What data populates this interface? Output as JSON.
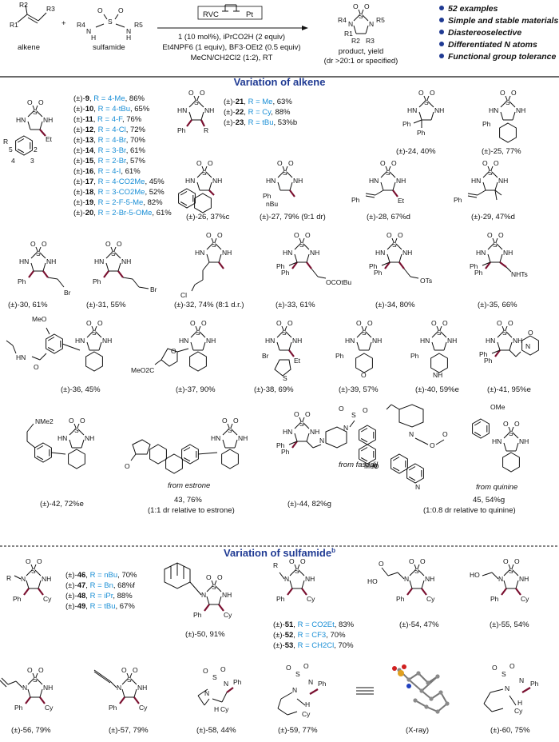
{
  "header": {
    "alkene_label": "alkene",
    "sulfamide_label": "sulfamide",
    "plus": "+",
    "electrodes": {
      "anode": "RVC",
      "cathode": "Pt"
    },
    "conditions": [
      "1 (10 mol%), iPrCO2H (2 equiv)",
      "Et4NPF6 (1 equiv), BF3·OEt2 (0.5 equiv)",
      "MeCN/CH2Cl2 (1:2), RT"
    ],
    "product_label": "product, yield",
    "dr_label": "(dr >20:1 or specified)",
    "highlights": [
      "52 examples",
      "Simple and stable materials",
      "Diastereoselective",
      "Differentiated N atoms",
      "Functional group tolerance"
    ],
    "bullet_color": "#1f3a93"
  },
  "sections": {
    "alkene": "Variation of alkene",
    "sulfamide": "Variation of sulfamide",
    "sulfamide_sup": "b"
  },
  "series_9_20": [
    {
      "no": "9",
      "r": "R = 4-Me",
      "y": "86%"
    },
    {
      "no": "10",
      "r": "R = 4-tBu",
      "y": "65%"
    },
    {
      "no": "11",
      "r": "R = 4-F",
      "y": "76%"
    },
    {
      "no": "12",
      "r": "R = 4-Cl",
      "y": "72%"
    },
    {
      "no": "13",
      "r": "R = 4-Br",
      "y": "70%"
    },
    {
      "no": "14",
      "r": "R = 3-Br",
      "y": "61%"
    },
    {
      "no": "15",
      "r": "R = 2-Br",
      "y": "57%"
    },
    {
      "no": "16",
      "r": "R = 4-I",
      "y": "61%"
    },
    {
      "no": "17",
      "r": "R = 4-CO2Me",
      "y": "45%"
    },
    {
      "no": "18",
      "r": "R = 3-CO2Me",
      "y": "52%"
    },
    {
      "no": "19",
      "r": "R = 2-F-5-Me",
      "y": "82%"
    },
    {
      "no": "20",
      "r": "R = 2-Br-5-OMe",
      "y": "61%"
    }
  ],
  "series_21_23": [
    {
      "no": "21",
      "r": "R = Me",
      "y": "63%"
    },
    {
      "no": "22",
      "r": "R = Cy",
      "y": "88%"
    },
    {
      "no": "23",
      "r": "R = tBu",
      "y": "53%b"
    }
  ],
  "series_46_49": [
    {
      "no": "46",
      "r": "R = nBu",
      "y": "70%"
    },
    {
      "no": "47",
      "r": "R = Bn",
      "y": "68%f"
    },
    {
      "no": "48",
      "r": "R = iPr",
      "y": "88%"
    },
    {
      "no": "49",
      "r": "R = tBu",
      "y": "67%"
    }
  ],
  "series_51_53": [
    {
      "no": "51",
      "r": "R = CO2Et",
      "y": "83%"
    },
    {
      "no": "52",
      "r": "R = CF3",
      "y": "70%"
    },
    {
      "no": "53",
      "r": "R = CH2Cl",
      "y": "70%"
    }
  ],
  "compounds": {
    "c24": "(±)-24, 40%",
    "c25": "(±)-25, 77%",
    "c26": "(±)-26, 37%c",
    "c27": "(±)-27, 79% (9:1 dr)",
    "c28": "(±)-28, 67%d",
    "c29": "(±)-29, 47%d",
    "c30": "(±)-30, 61%",
    "c31": "(±)-31, 55%",
    "c32": "(±)-32, 74% (8:1 d.r.)",
    "c33": "(±)-33, 61%",
    "c34": "(±)-34, 80%",
    "c35": "(±)-35, 66%",
    "c36": "(±)-36, 45%",
    "c37": "(±)-37, 90%",
    "c38": "(±)-38, 69%",
    "c39": "(±)-39, 57%",
    "c40": "(±)-40, 59%e",
    "c41": "(±)-41, 95%e",
    "c42": "(±)-42, 72%e",
    "c43": "43, 76%",
    "c43_dr": "(1:1 dr relative to estrone)",
    "c43_from": "from estrone",
    "c44": "(±)-44, 82%g",
    "c44_from": "from fasudil",
    "c45": "45, 54%g",
    "c45_dr": "(1:0.8 dr relative to quinine)",
    "c45_from": "from quinine",
    "c50": "(±)-50, 91%",
    "c54": "(±)-54, 47%",
    "c55": "(±)-55, 54%",
    "c56": "(±)-56, 79%",
    "c57": "(±)-57, 79%",
    "c58": "(±)-58, 44%",
    "c59": "(±)-59, 77%",
    "xray": "(X-ray)",
    "c60": "(±)-60, 75%"
  },
  "atoms": {
    "S": "S",
    "O": "O",
    "NH": "NH",
    "HN": "HN",
    "N": "N",
    "Ph": "Ph",
    "Et": "Et",
    "R": "R",
    "Cy": "Cy",
    "Me": "Me",
    "OMe": "OMe",
    "MeO": "MeO",
    "MeO2C": "MeO2C",
    "Br": "Br",
    "Cl": "Cl",
    "OTs": "OTs",
    "NHTs": "NHTs",
    "NMe2": "NMe2",
    "OCOtBu": "OCOtBu",
    "nBu": "nBu",
    "HO": "HO",
    "H": "H",
    "R1": "R1",
    "R2": "R2",
    "R3": "R3",
    "R4": "R4",
    "R5": "R5",
    "nums": [
      "5",
      "2",
      "4",
      "3"
    ]
  }
}
